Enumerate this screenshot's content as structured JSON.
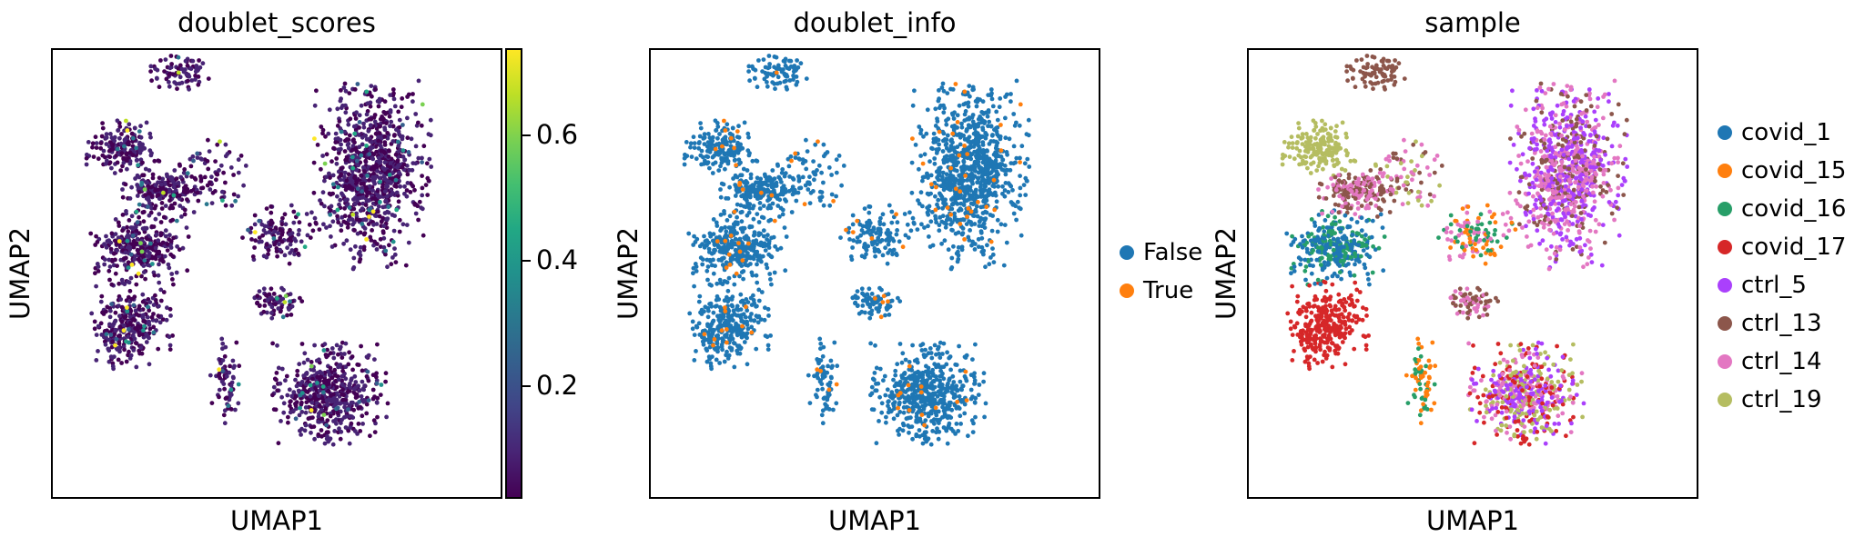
{
  "chart_data": [
    {
      "type": "scatter",
      "title": "doublet_scores",
      "xlabel": "UMAP1",
      "ylabel": "UMAP2",
      "color_by": "continuous",
      "colormap": "viridis",
      "colorbar": {
        "ticks": [
          0.2,
          0.4,
          0.6
        ],
        "tick_labels": [
          "0.2",
          "0.4",
          "0.6"
        ],
        "range": [
          0.02,
          0.74
        ]
      },
      "value_distribution": {
        "low_fraction": 0.95,
        "mid_fraction": 0.04,
        "high_fraction": 0.01
      }
    },
    {
      "type": "scatter",
      "title": "doublet_info",
      "xlabel": "UMAP1",
      "ylabel": "UMAP2",
      "color_by": "categorical",
      "legend": [
        {
          "name": "False",
          "color": "#1f77b4"
        },
        {
          "name": "True",
          "color": "#ff7f0e"
        }
      ],
      "category_fraction": {
        "False": 0.96,
        "True": 0.04
      }
    },
    {
      "type": "scatter",
      "title": "sample",
      "xlabel": "UMAP1",
      "ylabel": "UMAP2",
      "color_by": "categorical",
      "legend": [
        {
          "name": "covid_1",
          "color": "#1f77b4"
        },
        {
          "name": "covid_15",
          "color": "#ff7f0e"
        },
        {
          "name": "covid_16",
          "color": "#279e68"
        },
        {
          "name": "covid_17",
          "color": "#d62728"
        },
        {
          "name": "ctrl_5",
          "color": "#aa40fc"
        },
        {
          "name": "ctrl_13",
          "color": "#8c564b"
        },
        {
          "name": "ctrl_14",
          "color": "#e377c2"
        },
        {
          "name": "ctrl_19",
          "color": "#b5bd61"
        }
      ]
    }
  ]
}
